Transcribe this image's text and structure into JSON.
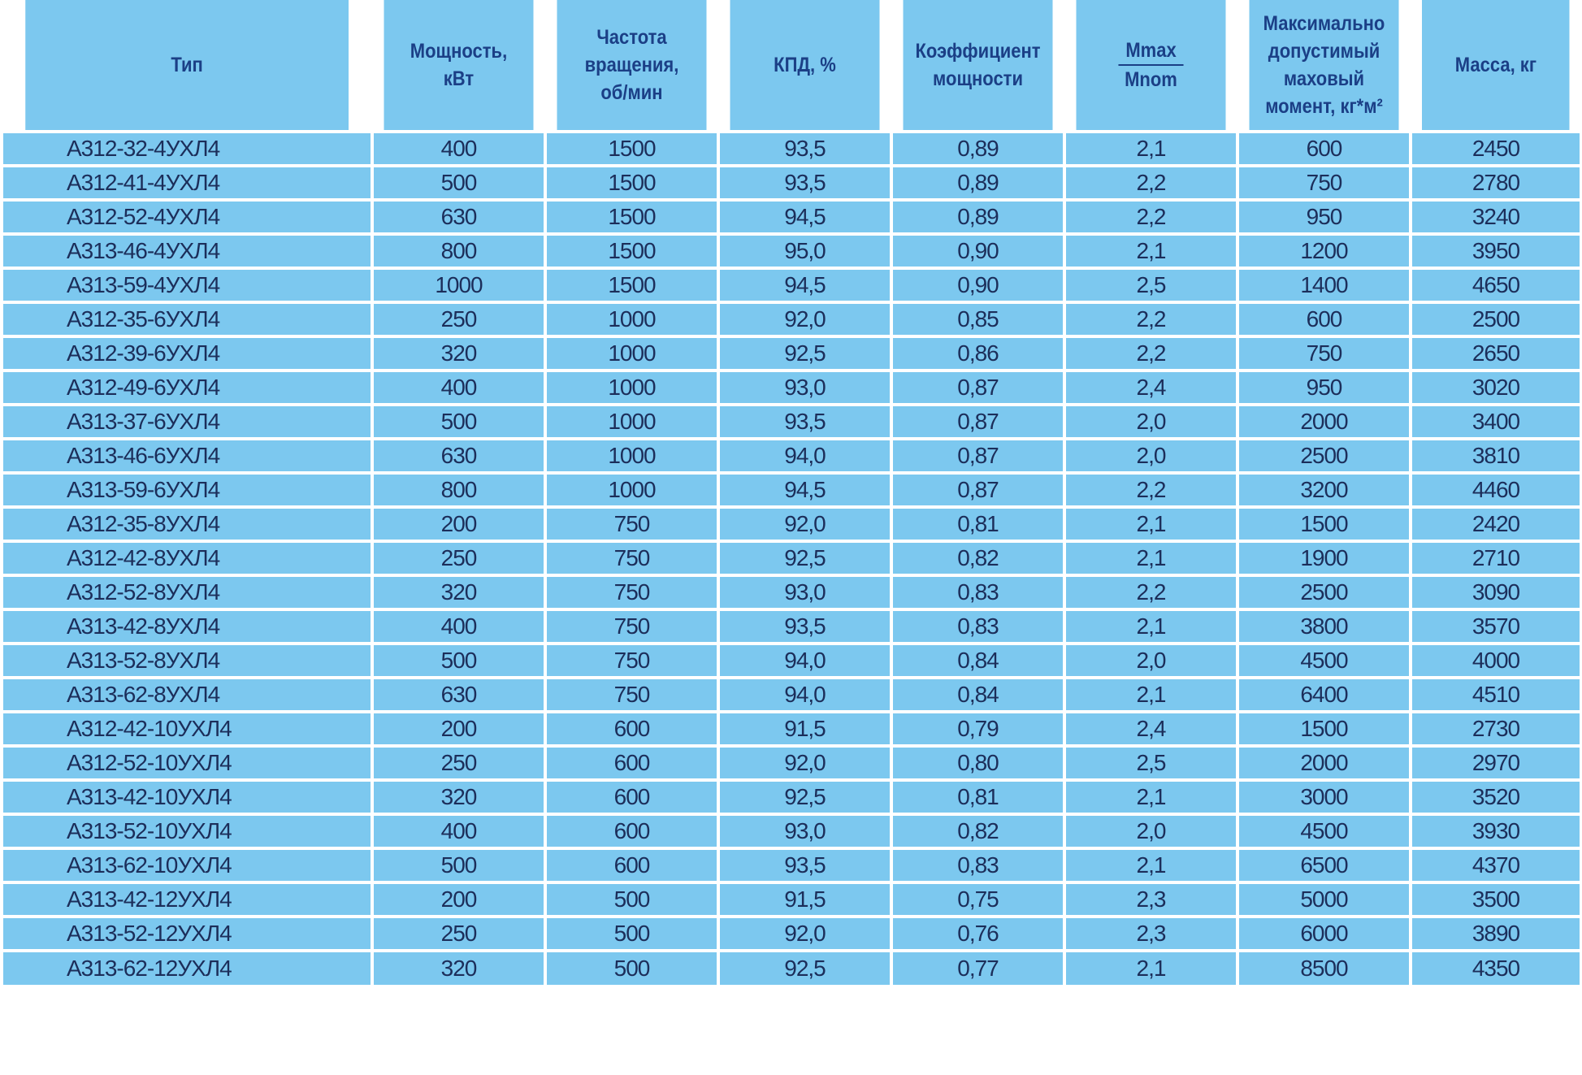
{
  "table": {
    "headers": [
      "Тип",
      "Мощность,\nкВт",
      "Частота\nвращения,\nоб/мин",
      "КПД, %",
      "Коэффициент\nмощности",
      "",
      "Максимально\nдопустимый\nмаховый\nмомент, кг*м²",
      "Масса, кг"
    ],
    "fraction_header": {
      "numerator": "Mmax",
      "denominator": "Mnom"
    },
    "rows": [
      [
        "А312-32-4УХЛ4",
        "400",
        "1500",
        "93,5",
        "0,89",
        "2,1",
        "600",
        "2450"
      ],
      [
        "А312-41-4УХЛ4",
        "500",
        "1500",
        "93,5",
        "0,89",
        "2,2",
        "750",
        "2780"
      ],
      [
        "А312-52-4УХЛ4",
        "630",
        "1500",
        "94,5",
        "0,89",
        "2,2",
        "950",
        "3240"
      ],
      [
        "А313-46-4УХЛ4",
        "800",
        "1500",
        "95,0",
        "0,90",
        "2,1",
        "1200",
        "3950"
      ],
      [
        "А313-59-4УХЛ4",
        "1000",
        "1500",
        "94,5",
        "0,90",
        "2,5",
        "1400",
        "4650"
      ],
      [
        "А312-35-6УХЛ4",
        "250",
        "1000",
        "92,0",
        "0,85",
        "2,2",
        "600",
        "2500"
      ],
      [
        "А312-39-6УХЛ4",
        "320",
        "1000",
        "92,5",
        "0,86",
        "2,2",
        "750",
        "2650"
      ],
      [
        "А312-49-6УХЛ4",
        "400",
        "1000",
        "93,0",
        "0,87",
        "2,4",
        "950",
        "3020"
      ],
      [
        "А313-37-6УХЛ4",
        "500",
        "1000",
        "93,5",
        "0,87",
        "2,0",
        "2000",
        "3400"
      ],
      [
        "А313-46-6УХЛ4",
        "630",
        "1000",
        "94,0",
        "0,87",
        "2,0",
        "2500",
        "3810"
      ],
      [
        "А313-59-6УХЛ4",
        "800",
        "1000",
        "94,5",
        "0,87",
        "2,2",
        "3200",
        "4460"
      ],
      [
        "А312-35-8УХЛ4",
        "200",
        "750",
        "92,0",
        "0,81",
        "2,1",
        "1500",
        "2420"
      ],
      [
        "А312-42-8УХЛ4",
        "250",
        "750",
        "92,5",
        "0,82",
        "2,1",
        "1900",
        "2710"
      ],
      [
        "А312-52-8УХЛ4",
        "320",
        "750",
        "93,0",
        "0,83",
        "2,2",
        "2500",
        "3090"
      ],
      [
        "А313-42-8УХЛ4",
        "400",
        "750",
        "93,5",
        "0,83",
        "2,1",
        "3800",
        "3570"
      ],
      [
        "А313-52-8УХЛ4",
        "500",
        "750",
        "94,0",
        "0,84",
        "2,0",
        "4500",
        "4000"
      ],
      [
        "А313-62-8УХЛ4",
        "630",
        "750",
        "94,0",
        "0,84",
        "2,1",
        "6400",
        "4510"
      ],
      [
        "А312-42-10УХЛ4",
        "200",
        "600",
        "91,5",
        "0,79",
        "2,4",
        "1500",
        "2730"
      ],
      [
        "А312-52-10УХЛ4",
        "250",
        "600",
        "92,0",
        "0,80",
        "2,5",
        "2000",
        "2970"
      ],
      [
        "А313-42-10УХЛ4",
        "320",
        "600",
        "92,5",
        "0,81",
        "2,1",
        "3000",
        "3520"
      ],
      [
        "А313-52-10УХЛ4",
        "400",
        "600",
        "93,0",
        "0,82",
        "2,0",
        "4500",
        "3930"
      ],
      [
        "А313-62-10УХЛ4",
        "500",
        "600",
        "93,5",
        "0,83",
        "2,1",
        "6500",
        "4370"
      ],
      [
        "А313-42-12УХЛ4",
        "200",
        "500",
        "91,5",
        "0,75",
        "2,3",
        "5000",
        "3500"
      ],
      [
        "А313-52-12УХЛ4",
        "250",
        "500",
        "92,0",
        "0,76",
        "2,3",
        "6000",
        "3890"
      ],
      [
        "А313-62-12УХЛ4",
        "320",
        "500",
        "92,5",
        "0,77",
        "2,1",
        "8500",
        "4350"
      ]
    ]
  },
  "colors": {
    "cell_background": "#7cc8ef",
    "grid_lines": "#ffffff",
    "header_text": "#1b3f86",
    "body_text": "#1c2e5a"
  }
}
